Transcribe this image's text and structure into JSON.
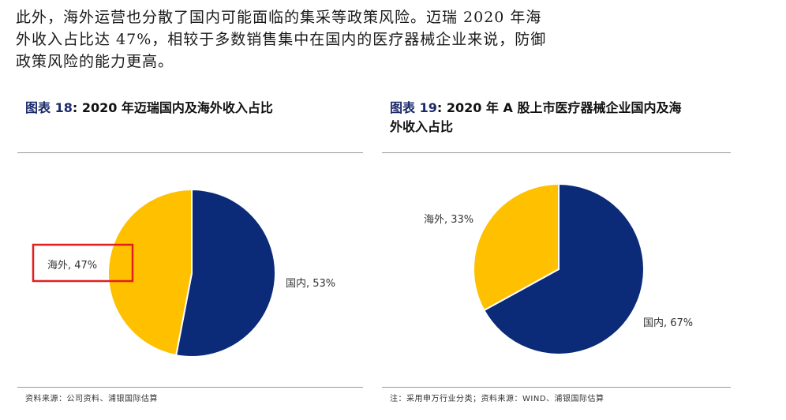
{
  "paragraph": {
    "line1": "此外，海外运营也分散了国内可能面临的集采等政策风险。迈瑞 2020 年海",
    "line2": "外收入占比达 47%，相较于多数销售集中在国内的医疗器械企业来说，防御",
    "line3": "政策风险的能力更高。"
  },
  "figure18": {
    "label": "图表",
    "number": "18",
    "title": ": 2020 年迈瑞国内及海外收入占比",
    "source": "资料来源：公司资料、浦银国际估算"
  },
  "figure19": {
    "label": "图表",
    "number": "19",
    "title_line1": ": 2020 年 A 股上市医疗器械企业国内及海",
    "title_line2": "外收入占比",
    "source": "注：采用申万行业分类；资料来源：WIND、浦银国际估算"
  },
  "colors": {
    "domestic": "#0b2a78",
    "overseas": "#ffc000",
    "highlight": "#e02020"
  },
  "chart_data": [
    {
      "type": "pie",
      "categories": [
        "国内",
        "海外"
      ],
      "values": [
        53,
        47
      ],
      "labels": [
        "国内, 53%",
        "海外, 47%"
      ],
      "highlighted": "海外, 47%"
    },
    {
      "type": "pie",
      "categories": [
        "国内",
        "海外"
      ],
      "values": [
        67,
        33
      ],
      "labels": [
        "国内, 67%",
        "海外, 33%"
      ]
    }
  ]
}
